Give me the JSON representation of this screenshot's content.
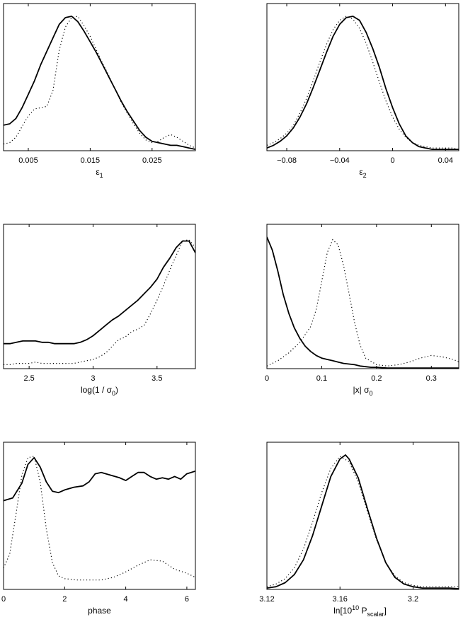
{
  "chart_data": [
    {
      "type": "line",
      "xlabel_parts": [
        {
          "t": "ε"
        },
        {
          "t": "1",
          "sub": true
        }
      ],
      "xlim": [
        0.001,
        0.032
      ],
      "ylim": [
        0,
        1
      ],
      "ticks": [
        0.005,
        0.015,
        0.025
      ],
      "tick_labels": [
        "0.005",
        "0.015",
        "0.025"
      ],
      "series": [
        {
          "style": "solid",
          "x": [
            0.001,
            0.002,
            0.003,
            0.004,
            0.005,
            0.006,
            0.007,
            0.008,
            0.009,
            0.01,
            0.011,
            0.012,
            0.013,
            0.014,
            0.015,
            0.016,
            0.017,
            0.018,
            0.019,
            0.02,
            0.021,
            0.022,
            0.023,
            0.024,
            0.025,
            0.026,
            0.027,
            0.028,
            0.029,
            0.03,
            0.031,
            0.032
          ],
          "y": [
            0.19,
            0.2,
            0.24,
            0.32,
            0.42,
            0.52,
            0.64,
            0.74,
            0.84,
            0.94,
            0.99,
            1.0,
            0.96,
            0.89,
            0.81,
            0.73,
            0.64,
            0.55,
            0.46,
            0.37,
            0.29,
            0.22,
            0.15,
            0.1,
            0.07,
            0.06,
            0.05,
            0.04,
            0.04,
            0.03,
            0.02,
            0.01
          ]
        },
        {
          "style": "dotted",
          "x": [
            0.001,
            0.002,
            0.003,
            0.004,
            0.005,
            0.006,
            0.007,
            0.008,
            0.009,
            0.01,
            0.011,
            0.012,
            0.013,
            0.014,
            0.015,
            0.016,
            0.017,
            0.018,
            0.019,
            0.02,
            0.021,
            0.022,
            0.023,
            0.024,
            0.025,
            0.026,
            0.027,
            0.028,
            0.029,
            0.03,
            0.031,
            0.032
          ],
          "y": [
            0.05,
            0.06,
            0.1,
            0.18,
            0.26,
            0.31,
            0.32,
            0.33,
            0.45,
            0.75,
            0.92,
            0.99,
            1.0,
            0.93,
            0.85,
            0.75,
            0.65,
            0.56,
            0.46,
            0.36,
            0.28,
            0.2,
            0.13,
            0.08,
            0.06,
            0.07,
            0.1,
            0.12,
            0.1,
            0.07,
            0.04,
            0.02
          ]
        }
      ]
    },
    {
      "type": "line",
      "xlabel_parts": [
        {
          "t": "ε"
        },
        {
          "t": "2",
          "sub": true
        }
      ],
      "xlim": [
        -0.095,
        0.05
      ],
      "ylim": [
        0,
        1
      ],
      "ticks": [
        -0.08,
        -0.04,
        0,
        0.04
      ],
      "tick_labels": [
        "−0.08",
        "−0.04",
        "0",
        "0.04"
      ],
      "series": [
        {
          "style": "solid",
          "x": [
            -0.095,
            -0.09,
            -0.085,
            -0.08,
            -0.075,
            -0.07,
            -0.065,
            -0.06,
            -0.055,
            -0.05,
            -0.045,
            -0.04,
            -0.035,
            -0.03,
            -0.025,
            -0.02,
            -0.015,
            -0.01,
            -0.005,
            0,
            0.005,
            0.01,
            0.015,
            0.02,
            0.025,
            0.03,
            0.035,
            0.04,
            0.045,
            0.05
          ],
          "y": [
            0.02,
            0.04,
            0.07,
            0.11,
            0.17,
            0.25,
            0.35,
            0.47,
            0.6,
            0.73,
            0.85,
            0.94,
            0.99,
            1.0,
            0.97,
            0.88,
            0.76,
            0.62,
            0.46,
            0.32,
            0.2,
            0.11,
            0.06,
            0.03,
            0.02,
            0.01,
            0.01,
            0.01,
            0.01,
            0.01
          ]
        },
        {
          "style": "dotted",
          "x": [
            -0.095,
            -0.09,
            -0.085,
            -0.08,
            -0.075,
            -0.07,
            -0.065,
            -0.06,
            -0.055,
            -0.05,
            -0.045,
            -0.04,
            -0.035,
            -0.03,
            -0.025,
            -0.02,
            -0.015,
            -0.01,
            -0.005,
            0,
            0.005,
            0.01,
            0.015,
            0.02,
            0.025,
            0.03,
            0.035,
            0.04,
            0.045,
            0.05
          ],
          "y": [
            0.04,
            0.06,
            0.09,
            0.13,
            0.19,
            0.28,
            0.39,
            0.52,
            0.66,
            0.79,
            0.9,
            0.97,
            1.0,
            0.98,
            0.91,
            0.8,
            0.66,
            0.51,
            0.37,
            0.25,
            0.16,
            0.1,
            0.06,
            0.04,
            0.03,
            0.02,
            0.02,
            0.02,
            0.02,
            0.01
          ]
        }
      ]
    },
    {
      "type": "line",
      "xlabel_parts": [
        {
          "t": "log(1 / σ"
        },
        {
          "t": "0",
          "sub": true
        },
        {
          "t": ")"
        }
      ],
      "xlim": [
        2.3,
        3.8
      ],
      "ylim": [
        0,
        1
      ],
      "ticks": [
        2.5,
        3,
        3.5
      ],
      "tick_labels": [
        "2.5",
        "3",
        "3.5"
      ],
      "series": [
        {
          "style": "solid",
          "x": [
            2.3,
            2.35,
            2.4,
            2.45,
            2.5,
            2.55,
            2.6,
            2.65,
            2.7,
            2.75,
            2.8,
            2.85,
            2.9,
            2.95,
            3.0,
            3.05,
            3.1,
            3.15,
            3.2,
            3.25,
            3.3,
            3.35,
            3.4,
            3.45,
            3.5,
            3.55,
            3.6,
            3.65,
            3.7,
            3.75,
            3.8
          ],
          "y": [
            0.19,
            0.19,
            0.2,
            0.21,
            0.21,
            0.21,
            0.2,
            0.2,
            0.19,
            0.19,
            0.19,
            0.19,
            0.2,
            0.22,
            0.25,
            0.29,
            0.33,
            0.37,
            0.4,
            0.44,
            0.48,
            0.52,
            0.57,
            0.62,
            0.68,
            0.77,
            0.84,
            0.92,
            0.97,
            0.97,
            0.88
          ]
        },
        {
          "style": "dotted",
          "x": [
            2.3,
            2.35,
            2.4,
            2.45,
            2.5,
            2.55,
            2.6,
            2.65,
            2.7,
            2.75,
            2.8,
            2.85,
            2.9,
            2.95,
            3.0,
            3.05,
            3.1,
            3.15,
            3.2,
            3.25,
            3.3,
            3.35,
            3.4,
            3.45,
            3.5,
            3.55,
            3.6,
            3.65,
            3.7,
            3.75,
            3.8
          ],
          "y": [
            0.03,
            0.03,
            0.04,
            0.04,
            0.04,
            0.05,
            0.04,
            0.04,
            0.04,
            0.04,
            0.04,
            0.04,
            0.05,
            0.06,
            0.07,
            0.09,
            0.12,
            0.17,
            0.22,
            0.24,
            0.28,
            0.3,
            0.33,
            0.42,
            0.52,
            0.63,
            0.75,
            0.86,
            0.97,
            0.98,
            0.92
          ]
        }
      ]
    },
    {
      "type": "line",
      "xlabel_parts": [
        {
          "t": "|x| σ"
        },
        {
          "t": "0",
          "sub": true
        }
      ],
      "xlim": [
        0,
        0.35
      ],
      "ylim": [
        0,
        1
      ],
      "ticks": [
        0,
        0.1,
        0.2,
        0.3
      ],
      "tick_labels": [
        "0",
        "0.1",
        "0.2",
        "0.3"
      ],
      "series": [
        {
          "style": "solid",
          "x": [
            0,
            0.01,
            0.02,
            0.03,
            0.04,
            0.05,
            0.06,
            0.07,
            0.08,
            0.09,
            0.1,
            0.11,
            0.12,
            0.13,
            0.14,
            0.15,
            0.16,
            0.17,
            0.18,
            0.19,
            0.2,
            0.22,
            0.25,
            0.3,
            0.35
          ],
          "y": [
            1.0,
            0.9,
            0.74,
            0.56,
            0.42,
            0.31,
            0.23,
            0.17,
            0.13,
            0.1,
            0.08,
            0.07,
            0.06,
            0.05,
            0.04,
            0.035,
            0.03,
            0.02,
            0.015,
            0.01,
            0.01,
            0.005,
            0.005,
            0.005,
            0.005
          ]
        },
        {
          "style": "dotted",
          "x": [
            0,
            0.02,
            0.04,
            0.06,
            0.08,
            0.09,
            0.1,
            0.11,
            0.12,
            0.13,
            0.14,
            0.15,
            0.16,
            0.17,
            0.18,
            0.2,
            0.22,
            0.24,
            0.26,
            0.28,
            0.3,
            0.32,
            0.34,
            0.35
          ],
          "y": [
            0.02,
            0.06,
            0.12,
            0.2,
            0.32,
            0.45,
            0.66,
            0.88,
            0.98,
            0.94,
            0.78,
            0.57,
            0.35,
            0.18,
            0.08,
            0.03,
            0.02,
            0.03,
            0.05,
            0.08,
            0.1,
            0.09,
            0.07,
            0.05
          ]
        }
      ]
    },
    {
      "type": "line",
      "xlabel_parts": [
        {
          "t": "phase"
        }
      ],
      "xlim": [
        0,
        6.28
      ],
      "ylim": [
        0,
        1
      ],
      "ticks": [
        0,
        2,
        4,
        6
      ],
      "tick_labels": [
        "0",
        "2",
        "4",
        "6"
      ],
      "series": [
        {
          "style": "solid",
          "x": [
            0,
            0.3,
            0.6,
            0.8,
            1.0,
            1.2,
            1.4,
            1.6,
            1.8,
            2.0,
            2.3,
            2.6,
            2.8,
            3.0,
            3.2,
            3.5,
            3.8,
            4.0,
            4.2,
            4.4,
            4.6,
            4.8,
            5.0,
            5.2,
            5.4,
            5.6,
            5.8,
            6.0,
            6.28
          ],
          "y": [
            0.66,
            0.68,
            0.79,
            0.93,
            0.98,
            0.91,
            0.8,
            0.73,
            0.72,
            0.74,
            0.76,
            0.77,
            0.8,
            0.86,
            0.87,
            0.85,
            0.83,
            0.81,
            0.84,
            0.87,
            0.87,
            0.84,
            0.82,
            0.83,
            0.82,
            0.84,
            0.82,
            0.86,
            0.88
          ]
        },
        {
          "style": "dotted",
          "x": [
            0,
            0.2,
            0.4,
            0.6,
            0.8,
            1.0,
            1.2,
            1.4,
            1.6,
            1.8,
            2.0,
            2.4,
            2.8,
            3.2,
            3.6,
            4.0,
            4.4,
            4.8,
            5.2,
            5.6,
            6.0,
            6.28
          ],
          "y": [
            0.16,
            0.26,
            0.55,
            0.85,
            0.98,
            0.99,
            0.8,
            0.45,
            0.2,
            0.1,
            0.08,
            0.07,
            0.07,
            0.07,
            0.09,
            0.13,
            0.18,
            0.22,
            0.21,
            0.15,
            0.12,
            0.09
          ]
        }
      ]
    },
    {
      "type": "line",
      "xlabel_parts": [
        {
          "t": "ln[10"
        },
        {
          "t": "10",
          "sup": true
        },
        {
          "t": " P"
        },
        {
          "t": "scalar",
          "sub": true
        },
        {
          "t": "]"
        }
      ],
      "xlim": [
        3.12,
        3.225
      ],
      "ylim": [
        0,
        1
      ],
      "ticks": [
        3.12,
        3.16,
        3.2
      ],
      "tick_labels": [
        "3.12",
        "3.16",
        "3.2"
      ],
      "series": [
        {
          "style": "solid",
          "x": [
            3.12,
            3.125,
            3.13,
            3.135,
            3.14,
            3.145,
            3.15,
            3.155,
            3.16,
            3.163,
            3.165,
            3.17,
            3.175,
            3.18,
            3.185,
            3.19,
            3.195,
            3.2,
            3.205,
            3.21,
            3.215,
            3.22,
            3.225
          ],
          "y": [
            0.01,
            0.02,
            0.05,
            0.11,
            0.22,
            0.4,
            0.62,
            0.84,
            0.97,
            1.0,
            0.97,
            0.83,
            0.6,
            0.38,
            0.2,
            0.09,
            0.04,
            0.02,
            0.01,
            0.01,
            0.01,
            0.01,
            0.005
          ]
        },
        {
          "style": "dotted",
          "x": [
            3.12,
            3.125,
            3.13,
            3.135,
            3.14,
            3.145,
            3.15,
            3.155,
            3.16,
            3.165,
            3.17,
            3.175,
            3.18,
            3.185,
            3.19,
            3.195,
            3.2,
            3.205,
            3.21,
            3.215,
            3.22,
            3.225
          ],
          "y": [
            0.02,
            0.04,
            0.08,
            0.16,
            0.3,
            0.5,
            0.72,
            0.9,
            0.99,
            0.95,
            0.8,
            0.58,
            0.37,
            0.2,
            0.1,
            0.05,
            0.03,
            0.02,
            0.02,
            0.02,
            0.02,
            0.02
          ]
        }
      ]
    }
  ]
}
